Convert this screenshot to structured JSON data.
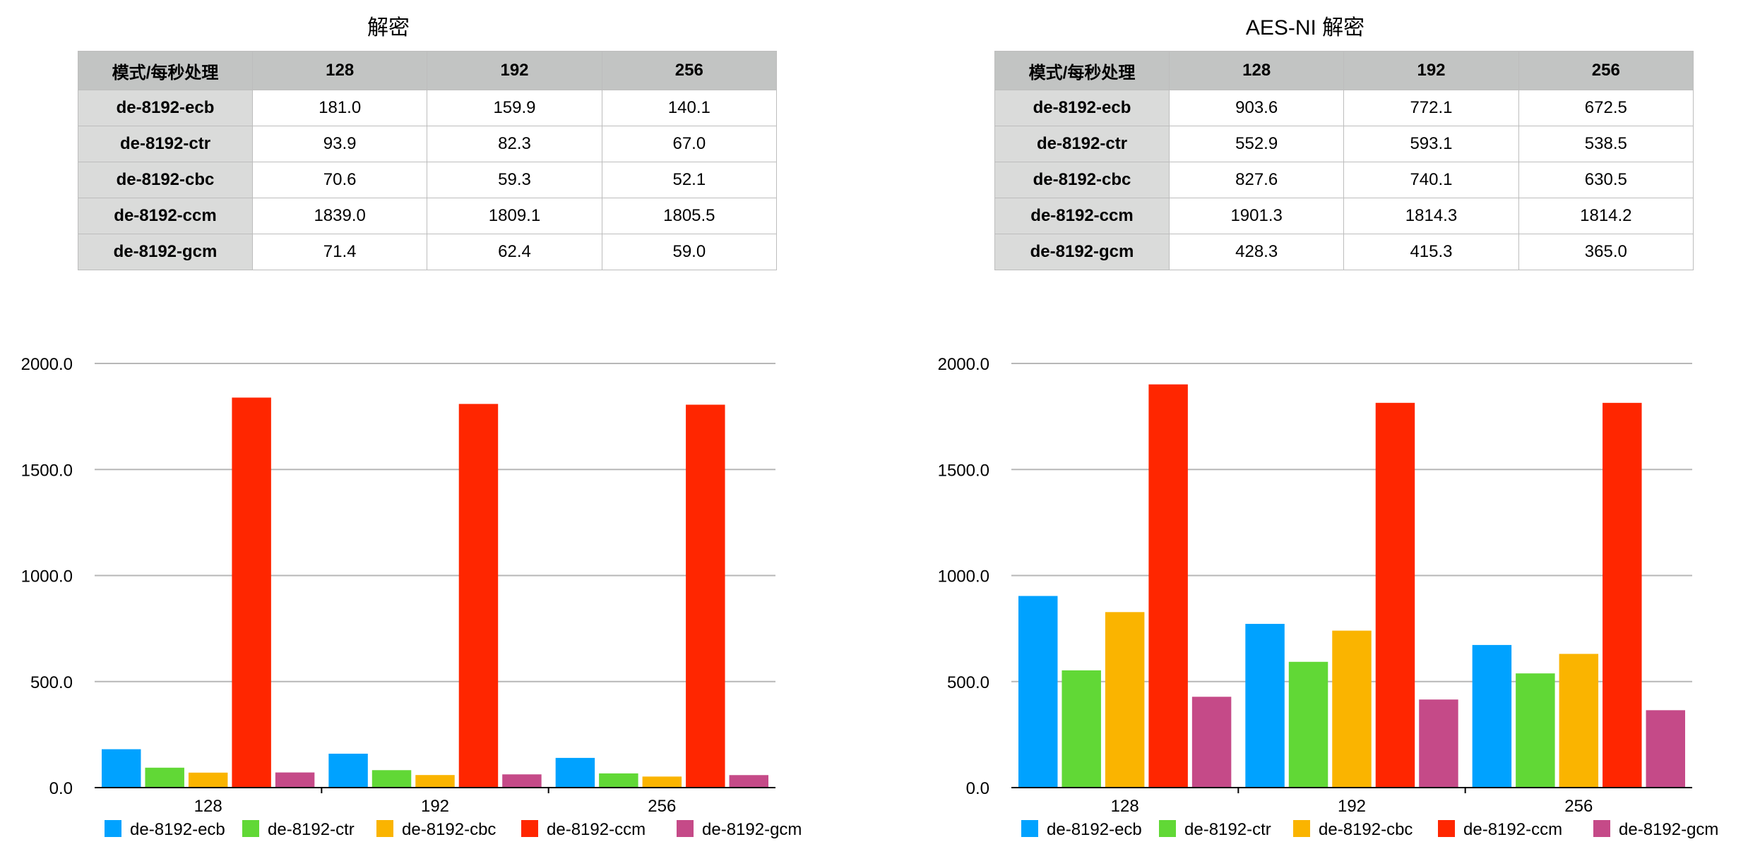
{
  "panels": [
    {
      "title": "解密",
      "table": {
        "corner": "模式/每秒处理",
        "columns": [
          "128",
          "192",
          "256"
        ],
        "rows": [
          {
            "label": "de-8192-ecb",
            "values": [
              "181.0",
              "159.9",
              "140.1"
            ]
          },
          {
            "label": "de-8192-ctr",
            "values": [
              "93.9",
              "82.3",
              "67.0"
            ]
          },
          {
            "label": "de-8192-cbc",
            "values": [
              "70.6",
              "59.3",
              "52.1"
            ]
          },
          {
            "label": "de-8192-ccm",
            "values": [
              "1839.0",
              "1809.1",
              "1805.5"
            ]
          },
          {
            "label": "de-8192-gcm",
            "values": [
              "71.4",
              "62.4",
              "59.0"
            ]
          }
        ]
      }
    },
    {
      "title": "AES-NI 解密",
      "table": {
        "corner": "模式/每秒处理",
        "columns": [
          "128",
          "192",
          "256"
        ],
        "rows": [
          {
            "label": "de-8192-ecb",
            "values": [
              "903.6",
              "772.1",
              "672.5"
            ]
          },
          {
            "label": "de-8192-ctr",
            "values": [
              "552.9",
              "593.1",
              "538.5"
            ]
          },
          {
            "label": "de-8192-cbc",
            "values": [
              "827.6",
              "740.1",
              "630.5"
            ]
          },
          {
            "label": "de-8192-ccm",
            "values": [
              "1901.3",
              "1814.3",
              "1814.2"
            ]
          },
          {
            "label": "de-8192-gcm",
            "values": [
              "428.3",
              "415.3",
              "365.0"
            ]
          }
        ]
      }
    }
  ],
  "chart_data": [
    {
      "type": "bar",
      "title": "",
      "categories": [
        "128",
        "192",
        "256"
      ],
      "ylim": [
        0,
        2000
      ],
      "yticks": [
        "0.0",
        "500.0",
        "1000.0",
        "1500.0",
        "2000.0"
      ],
      "ytick_values": [
        0,
        500,
        1000,
        1500,
        2000
      ],
      "grid": true,
      "legend": "bottom",
      "series": [
        {
          "name": "de-8192-ecb",
          "color": "#00a2ff",
          "values": [
            181.0,
            159.9,
            140.1
          ]
        },
        {
          "name": "de-8192-ctr",
          "color": "#61d836",
          "values": [
            93.9,
            82.3,
            67.0
          ]
        },
        {
          "name": "de-8192-cbc",
          "color": "#fab400",
          "values": [
            70.6,
            59.3,
            52.1
          ]
        },
        {
          "name": "de-8192-ccm",
          "color": "#ff2600",
          "values": [
            1839.0,
            1809.1,
            1805.5
          ]
        },
        {
          "name": "de-8192-gcm",
          "color": "#c54a88",
          "values": [
            71.4,
            62.4,
            59.0
          ]
        }
      ]
    },
    {
      "type": "bar",
      "title": "",
      "categories": [
        "128",
        "192",
        "256"
      ],
      "ylim": [
        0,
        2000
      ],
      "yticks": [
        "0.0",
        "500.0",
        "1000.0",
        "1500.0",
        "2000.0"
      ],
      "ytick_values": [
        0,
        500,
        1000,
        1500,
        2000
      ],
      "grid": true,
      "legend": "bottom",
      "series": [
        {
          "name": "de-8192-ecb",
          "color": "#00a2ff",
          "values": [
            903.6,
            772.1,
            672.5
          ]
        },
        {
          "name": "de-8192-ctr",
          "color": "#61d836",
          "values": [
            552.9,
            593.1,
            538.5
          ]
        },
        {
          "name": "de-8192-cbc",
          "color": "#fab400",
          "values": [
            827.6,
            740.1,
            630.5
          ]
        },
        {
          "name": "de-8192-ccm",
          "color": "#ff2600",
          "values": [
            1901.3,
            1814.3,
            1814.2
          ]
        },
        {
          "name": "de-8192-gcm",
          "color": "#c54a88",
          "values": [
            428.3,
            415.3,
            365.0
          ]
        }
      ]
    }
  ]
}
